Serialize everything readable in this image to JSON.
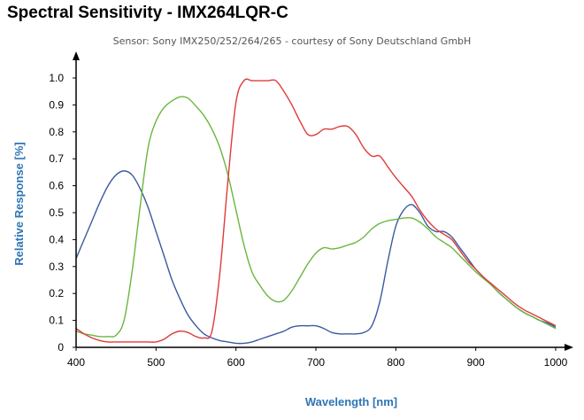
{
  "title": "Spectral Sensitivity - IMX264LQR-C",
  "subtitle": "Sensor: Sony IMX250/252/264/265 - courtesy of Sony Deutschland GmbH",
  "chart_data": {
    "type": "line",
    "title": "Spectral Sensitivity - IMX264LQR-C",
    "subtitle": "Sensor: Sony IMX250/252/264/265 - courtesy of Sony Deutschland GmbH",
    "xlabel": "Wavelength [nm]",
    "ylabel": "Relative Response [%]",
    "xlim": [
      400,
      1000
    ],
    "ylim": [
      0,
      1.0
    ],
    "xticks": [
      "400",
      "500",
      "600",
      "700",
      "800",
      "900",
      "1000"
    ],
    "yticks": [
      "0",
      "0.1",
      "0.2",
      "0.3",
      "0.4",
      "0.5",
      "0.6",
      "0.7",
      "0.8",
      "0.9",
      "1.0"
    ],
    "grid": false,
    "series": [
      {
        "color": "#3c5aa0",
        "x": [
          400,
          410,
          420,
          430,
          440,
          450,
          460,
          470,
          480,
          490,
          500,
          510,
          520,
          530,
          540,
          550,
          560,
          570,
          580,
          590,
          600,
          610,
          620,
          630,
          640,
          650,
          660,
          670,
          680,
          690,
          700,
          710,
          720,
          730,
          740,
          750,
          760,
          770,
          780,
          790,
          800,
          810,
          820,
          830,
          840,
          850,
          860,
          870,
          880,
          890,
          900,
          910,
          920,
          930,
          940,
          950,
          960,
          970,
          980,
          990,
          1000
        ],
        "y": [
          0.33,
          0.4,
          0.47,
          0.54,
          0.6,
          0.64,
          0.655,
          0.64,
          0.59,
          0.52,
          0.43,
          0.34,
          0.25,
          0.18,
          0.12,
          0.08,
          0.05,
          0.035,
          0.025,
          0.02,
          0.015,
          0.015,
          0.02,
          0.03,
          0.04,
          0.05,
          0.06,
          0.075,
          0.08,
          0.08,
          0.08,
          0.07,
          0.055,
          0.05,
          0.05,
          0.05,
          0.055,
          0.08,
          0.17,
          0.32,
          0.45,
          0.51,
          0.53,
          0.5,
          0.45,
          0.43,
          0.43,
          0.41,
          0.37,
          0.33,
          0.29,
          0.26,
          0.23,
          0.2,
          0.175,
          0.15,
          0.13,
          0.115,
          0.1,
          0.09,
          0.075
        ]
      },
      {
        "color": "#6ab63f",
        "x": [
          400,
          410,
          420,
          430,
          440,
          450,
          460,
          470,
          480,
          490,
          500,
          510,
          520,
          530,
          540,
          550,
          560,
          570,
          580,
          590,
          600,
          610,
          620,
          630,
          640,
          650,
          660,
          670,
          680,
          690,
          700,
          710,
          720,
          730,
          740,
          750,
          760,
          770,
          780,
          790,
          800,
          810,
          820,
          830,
          840,
          850,
          860,
          870,
          880,
          890,
          900,
          910,
          920,
          930,
          940,
          950,
          960,
          970,
          980,
          990,
          1000
        ],
        "y": [
          0.06,
          0.05,
          0.045,
          0.04,
          0.04,
          0.045,
          0.1,
          0.28,
          0.52,
          0.74,
          0.84,
          0.89,
          0.915,
          0.93,
          0.925,
          0.895,
          0.86,
          0.81,
          0.74,
          0.64,
          0.51,
          0.38,
          0.28,
          0.23,
          0.19,
          0.17,
          0.175,
          0.21,
          0.26,
          0.31,
          0.35,
          0.37,
          0.365,
          0.37,
          0.38,
          0.39,
          0.41,
          0.44,
          0.46,
          0.47,
          0.475,
          0.48,
          0.48,
          0.465,
          0.44,
          0.41,
          0.39,
          0.37,
          0.34,
          0.31,
          0.28,
          0.255,
          0.23,
          0.2,
          0.175,
          0.15,
          0.13,
          0.115,
          0.1,
          0.085,
          0.07
        ]
      },
      {
        "color": "#e03a3a",
        "x": [
          400,
          410,
          420,
          430,
          440,
          450,
          460,
          470,
          480,
          490,
          500,
          510,
          520,
          530,
          540,
          550,
          560,
          570,
          580,
          590,
          600,
          610,
          620,
          630,
          640,
          650,
          660,
          670,
          680,
          690,
          700,
          710,
          720,
          730,
          740,
          750,
          760,
          770,
          780,
          790,
          800,
          810,
          820,
          830,
          840,
          850,
          860,
          870,
          880,
          890,
          900,
          910,
          920,
          930,
          940,
          950,
          960,
          970,
          980,
          990,
          1000
        ],
        "y": [
          0.07,
          0.05,
          0.035,
          0.025,
          0.02,
          0.02,
          0.02,
          0.02,
          0.02,
          0.02,
          0.02,
          0.03,
          0.05,
          0.06,
          0.055,
          0.04,
          0.035,
          0.06,
          0.28,
          0.62,
          0.91,
          0.99,
          0.99,
          0.99,
          0.99,
          0.99,
          0.95,
          0.9,
          0.84,
          0.79,
          0.79,
          0.81,
          0.81,
          0.82,
          0.82,
          0.79,
          0.74,
          0.71,
          0.71,
          0.67,
          0.63,
          0.595,
          0.56,
          0.51,
          0.47,
          0.44,
          0.42,
          0.4,
          0.36,
          0.32,
          0.29,
          0.26,
          0.235,
          0.21,
          0.185,
          0.16,
          0.14,
          0.125,
          0.11,
          0.095,
          0.08
        ]
      }
    ]
  }
}
